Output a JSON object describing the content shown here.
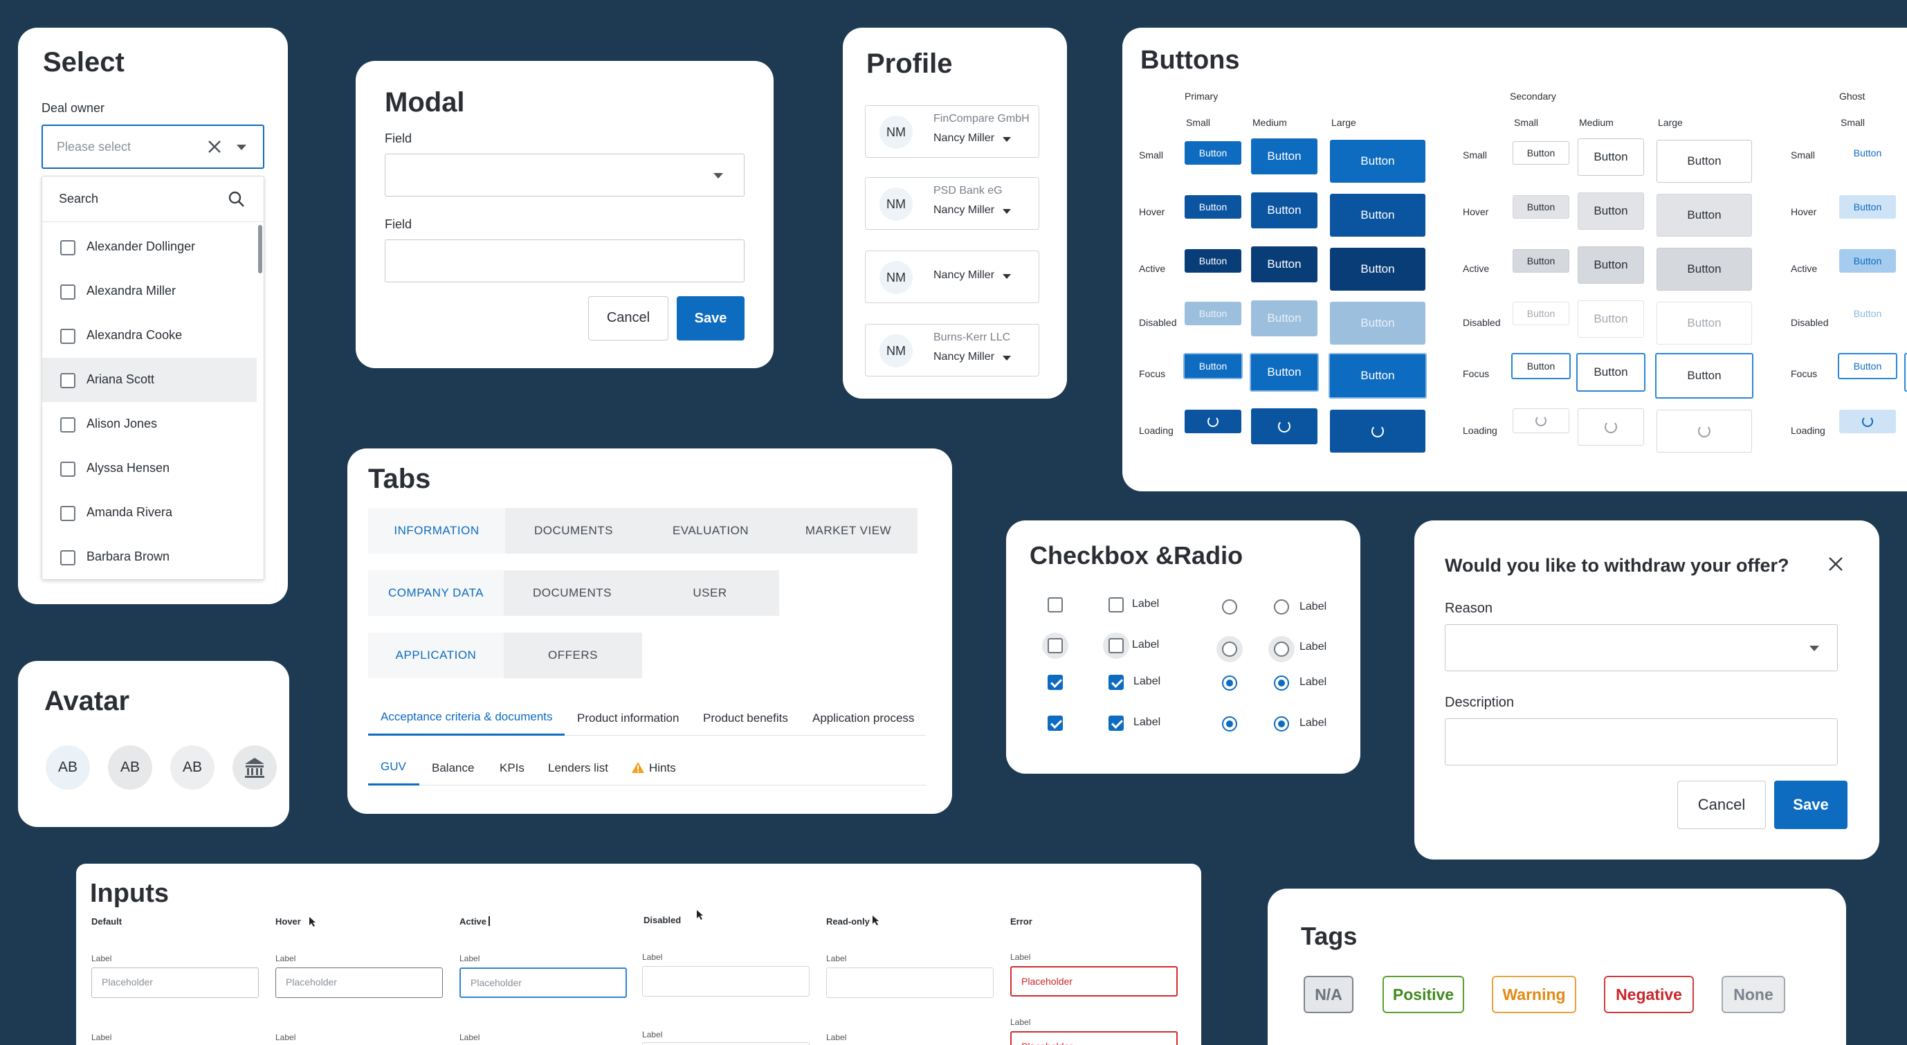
{
  "select": {
    "title": "Select",
    "label": "Deal owner",
    "placeholder": "Please select",
    "search_placeholder": "Search",
    "options": [
      "Alexander Dollinger",
      "Alexandra Miller",
      "Alexandra Cooke",
      "Ariana Scott",
      "Alison Jones",
      "Alyssa Hensen",
      "Amanda Rivera",
      "Barbara Brown"
    ],
    "highlighted_option": "Ariana Scott"
  },
  "modal": {
    "title": "Modal",
    "field1_label": "Field",
    "field2_label": "Field",
    "cancel": "Cancel",
    "save": "Save"
  },
  "profile": {
    "title": "Profile",
    "items": [
      {
        "initials": "NM",
        "company": "FinCompare GmbH",
        "name": "Nancy Miller"
      },
      {
        "initials": "NM",
        "company": "PSD Bank eG",
        "name": "Nancy Miller"
      },
      {
        "initials": "NM",
        "company": "",
        "name": "Nancy Miller"
      },
      {
        "initials": "NM",
        "company": "Burns-Kerr LLC",
        "name": "Nancy Miller"
      }
    ]
  },
  "buttons": {
    "title": "Buttons",
    "groups": [
      "Primary",
      "Secondary",
      "Ghost"
    ],
    "sizes": [
      "Small",
      "Medium",
      "Large"
    ],
    "ghost_sizes": [
      "Small"
    ],
    "states": [
      "Small",
      "Hover",
      "Active",
      "Disabled",
      "Focus",
      "Loading"
    ],
    "button_label": "Button"
  },
  "avatar": {
    "title": "Avatar",
    "items": [
      "AB",
      "AB",
      "AB"
    ],
    "icon": "bank-icon"
  },
  "tabs": {
    "title": "Tabs",
    "row1": [
      "INFORMATION",
      "DOCUMENTS",
      "EVALUATION",
      "MARKET VIEW"
    ],
    "row2": [
      "COMPANY DATA",
      "DOCUMENTS",
      "USER"
    ],
    "row3": [
      "APPLICATION",
      "OFFERS"
    ],
    "underline1": [
      "Acceptance criteria & documents",
      "Product information",
      "Product benefits",
      "Application process"
    ],
    "underline2": [
      "GUV",
      "Balance",
      "KPIs",
      "Lenders list",
      "Hints"
    ],
    "hint_icon": "warning-icon"
  },
  "checkbox": {
    "title": "Checkbox &Radio",
    "label": "Label"
  },
  "withdraw": {
    "title": "Would you like to withdraw your offer?",
    "reason_label": "Reason",
    "description_label": "Description",
    "cancel": "Cancel",
    "save": "Save"
  },
  "inputs": {
    "title": "Inputs",
    "columns": [
      "Default",
      "Hover",
      "Active",
      "Disabled",
      "Read-only",
      "Error"
    ],
    "label": "Label",
    "placeholder": "Placeholder"
  },
  "tags": {
    "title": "Tags",
    "items": [
      {
        "label": "N/A",
        "color": "#6c737c",
        "bg": "#e4e6e9"
      },
      {
        "label": "Positive",
        "color": "#3f8a1e",
        "bg": "#ffffff"
      },
      {
        "label": "Warning",
        "color": "#e08a14",
        "bg": "#ffffff"
      },
      {
        "label": "Negative",
        "color": "#c9252c",
        "bg": "#ffffff"
      },
      {
        "label": "None",
        "color": "#7b828b",
        "bg": "#e9ebed"
      }
    ]
  },
  "colors": {
    "primary": "#0d6bc0",
    "background": "#1d3a52"
  }
}
